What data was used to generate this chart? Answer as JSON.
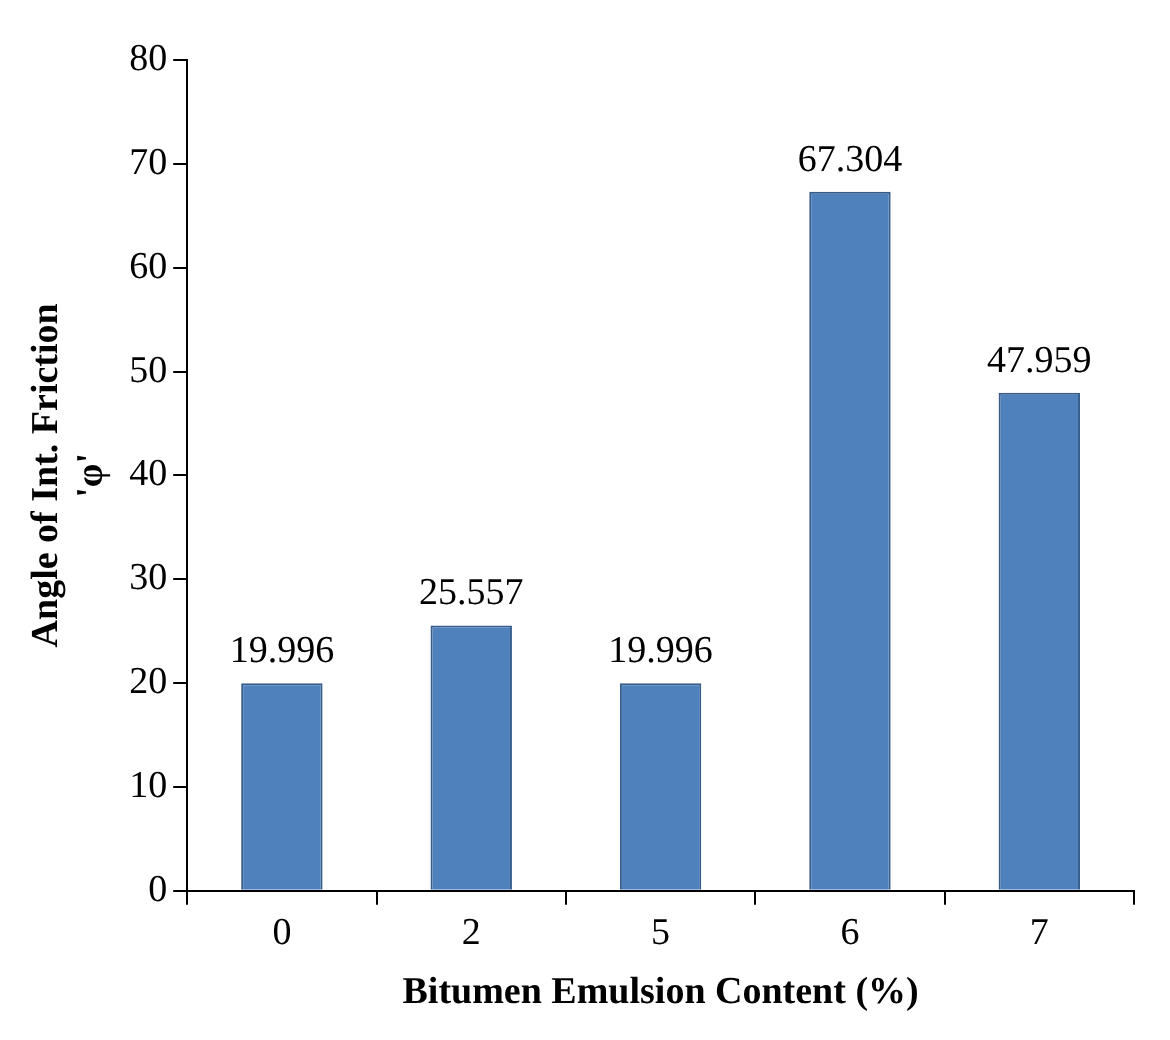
{
  "chart_data": {
    "type": "bar",
    "xlabel": "Bitumen Emulsion Content (%)",
    "ylabel": "Angle of Int. Friction\n'φ'",
    "categories": [
      "0",
      "2",
      "5",
      "6",
      "7"
    ],
    "values": [
      19.996,
      25.557,
      19.996,
      67.304,
      47.959
    ],
    "color": "#4f81bd",
    "ylim": [
      0,
      80
    ],
    "yticks": [
      0,
      10,
      20,
      30,
      40,
      50,
      60,
      70,
      80
    ],
    "grid": false,
    "legend": false,
    "data_labels": true
  }
}
